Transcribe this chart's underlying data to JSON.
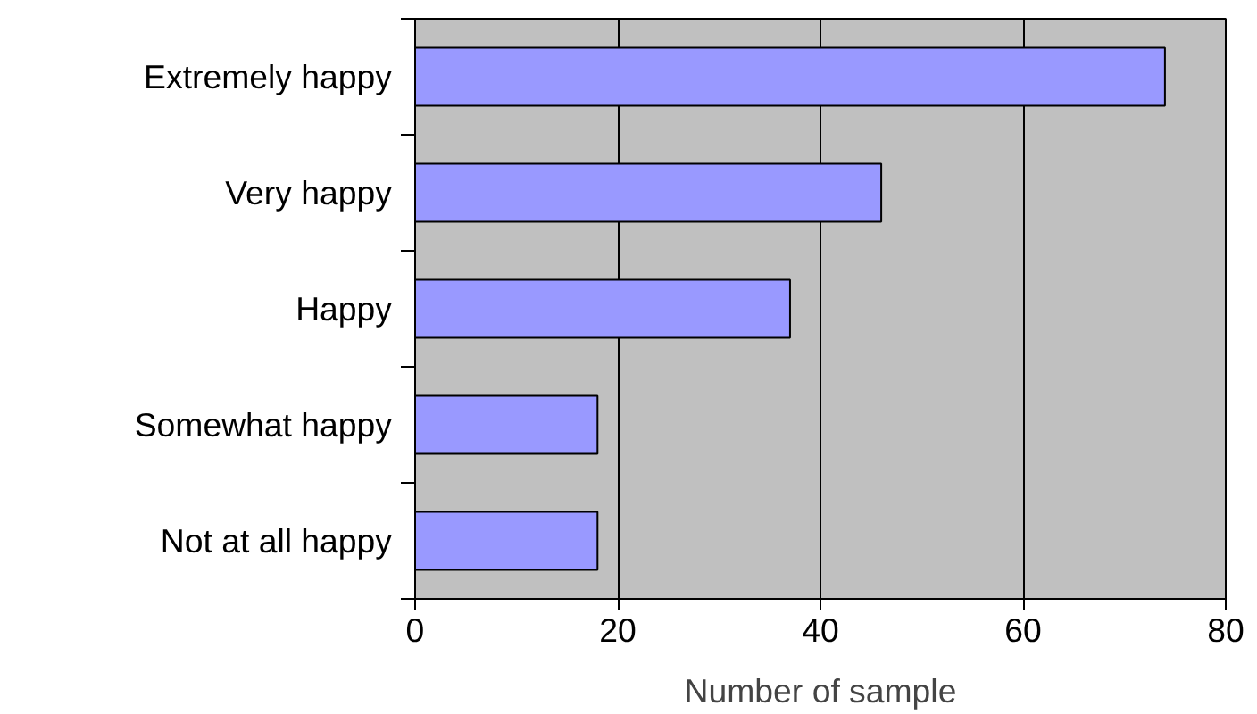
{
  "chart_data": {
    "type": "bar",
    "orientation": "horizontal",
    "xlabel": "Number of sample",
    "categories": [
      "Extremely happy",
      "Very happy",
      "Happy",
      "Somewhat happy",
      "Not at all happy"
    ],
    "values": [
      74,
      46,
      37,
      18,
      18
    ],
    "color": "#9999ff",
    "xlim": [
      0,
      80
    ],
    "xticks": [
      0,
      20,
      40,
      60,
      80
    ],
    "grid": "x"
  }
}
